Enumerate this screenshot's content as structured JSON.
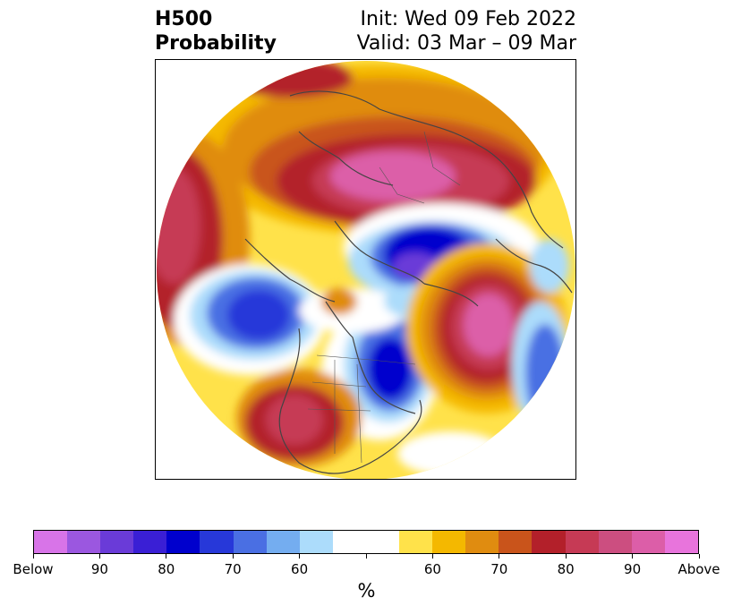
{
  "header": {
    "title_line1": "H500",
    "title_line2": "Probability",
    "init": "Init: Wed 09 Feb 2022",
    "valid": "Valid: 03 Mar – 09 Mar"
  },
  "map": {
    "projection": "north-polar-stereographic",
    "icons": [
      "coastline",
      "country-borders",
      "us-state-borders"
    ]
  },
  "colorbar": {
    "colors": [
      "#d874e8",
      "#9b57e0",
      "#6a3bd8",
      "#3a1fd5",
      "#0000cd",
      "#2738d9",
      "#4a6fe3",
      "#74adf0",
      "#acdcfb",
      "#ffffff",
      "#ffffff",
      "#ffe24a",
      "#f4b800",
      "#e08c10",
      "#c9541b",
      "#b3202a",
      "#c63a55",
      "#cc4e80",
      "#dc5ea8",
      "#e874dc"
    ],
    "tick_labels": [
      "Below",
      "90",
      "80",
      "70",
      "60",
      "",
      "60",
      "70",
      "80",
      "90",
      "Above"
    ],
    "units": "%"
  }
}
